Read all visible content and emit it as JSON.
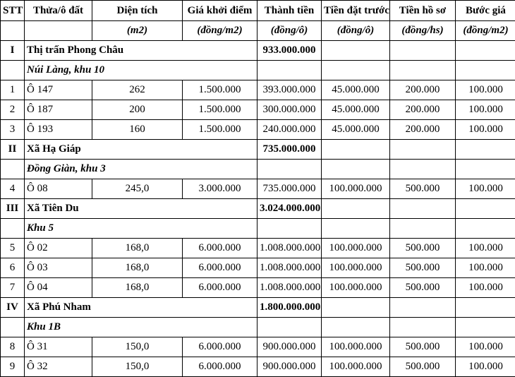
{
  "headers": [
    "STT",
    "Thửa/ô đất",
    "Diện tích",
    "Giá khởi điểm",
    "Thành tiền",
    "Tiền đặt trước",
    "Tiền hồ sơ",
    "Bước giá"
  ],
  "units": [
    "",
    "",
    "(m2)",
    "(đồng/m2)",
    "(đồng/ô)",
    "(đồng/ô)",
    "(đồng/hs)",
    "(đồng/m2)"
  ],
  "groups": [
    {
      "stt": "I",
      "name": "Thị trấn Phong Châu",
      "total": "933.000.000",
      "area": "Núi Làng, khu 10",
      "rows": [
        {
          "stt": "1",
          "lot": "Ô 147",
          "size": "262",
          "price": "1.500.000",
          "amount": "393.000.000",
          "deposit": "45.000.000",
          "fee": "200.000",
          "step": "100.000"
        },
        {
          "stt": "2",
          "lot": "Ô 187",
          "size": "200",
          "price": "1.500.000",
          "amount": "300.000.000",
          "deposit": "45.000.000",
          "fee": "200.000",
          "step": "100.000"
        },
        {
          "stt": "3",
          "lot": "Ô 193",
          "size": "160",
          "price": "1.500.000",
          "amount": "240.000.000",
          "deposit": "45.000.000",
          "fee": "200.000",
          "step": "100.000"
        }
      ]
    },
    {
      "stt": "II",
      "name": "Xã Hạ Giáp",
      "total": "735.000.000",
      "area": "Đồng Giàn, khu 3",
      "rows": [
        {
          "stt": "4",
          "lot": "Ô 08",
          "size": "245,0",
          "price": "3.000.000",
          "amount": "735.000.000",
          "deposit": "100.000.000",
          "fee": "500.000",
          "step": "100.000"
        }
      ]
    },
    {
      "stt": "III",
      "name": "Xã Tiên Du",
      "total": "3.024.000.000",
      "area": "Khu 5",
      "rows": [
        {
          "stt": "5",
          "lot": "Ô 02",
          "size": "168,0",
          "price": "6.000.000",
          "amount": "1.008.000.000",
          "deposit": "100.000.000",
          "fee": "500.000",
          "step": "100.000"
        },
        {
          "stt": "6",
          "lot": "Ô 03",
          "size": "168,0",
          "price": "6.000.000",
          "amount": "1.008.000.000",
          "deposit": "100.000.000",
          "fee": "500.000",
          "step": "100.000"
        },
        {
          "stt": "7",
          "lot": "Ô 04",
          "size": "168,0",
          "price": "6.000.000",
          "amount": "1.008.000.000",
          "deposit": "100.000.000",
          "fee": "500.000",
          "step": "100.000"
        }
      ]
    },
    {
      "stt": "IV",
      "name": "Xã Phú Nham",
      "total": "1.800.000.000",
      "area": "Khu 1B",
      "rows": [
        {
          "stt": "8",
          "lot": "Ô 31",
          "size": "150,0",
          "price": "6.000.000",
          "amount": "900.000.000",
          "deposit": "100.000.000",
          "fee": "500.000",
          "step": "100.000"
        },
        {
          "stt": "9",
          "lot": "Ô 32",
          "size": "150,0",
          "price": "6.000.000",
          "amount": "900.000.000",
          "deposit": "100.000.000",
          "fee": "500.000",
          "step": "100.000"
        }
      ]
    }
  ]
}
